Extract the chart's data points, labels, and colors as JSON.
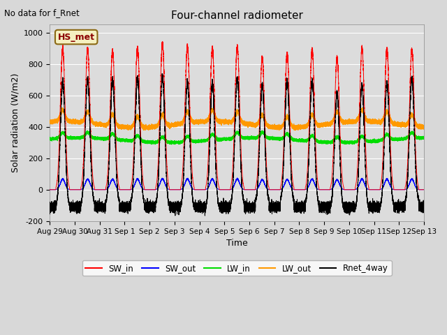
{
  "title": "Four-channel radiometer",
  "top_left_text": "No data for f_Rnet",
  "station_label": "HS_met",
  "ylabel": "Solar radiation (W/m2)",
  "xlabel": "Time",
  "ylim": [
    -200,
    1050
  ],
  "yticks": [
    -200,
    0,
    200,
    400,
    600,
    800,
    1000
  ],
  "xtick_labels": [
    "Aug 29",
    "Aug 30",
    "Aug 31",
    "Sep 1",
    "Sep 2",
    "Sep 3",
    "Sep 4",
    "Sep 5",
    "Sep 6",
    "Sep 7",
    "Sep 8",
    "Sep 9",
    "Sep 10",
    "Sep 11",
    "Sep 12",
    "Sep 13"
  ],
  "colors": {
    "SW_in": "#ff0000",
    "SW_out": "#0000ff",
    "LW_in": "#00dd00",
    "LW_out": "#ff9900",
    "Rnet_4way": "#000000"
  },
  "fig_bg": "#d8d8d8",
  "plot_bg": "#dcdcdc",
  "n_days": 15,
  "SW_in_peak": 930,
  "LW_in_base": 315,
  "LW_in_amp": 40,
  "LW_out_base": 415,
  "LW_out_amp": 65,
  "Rnet_night": -110
}
